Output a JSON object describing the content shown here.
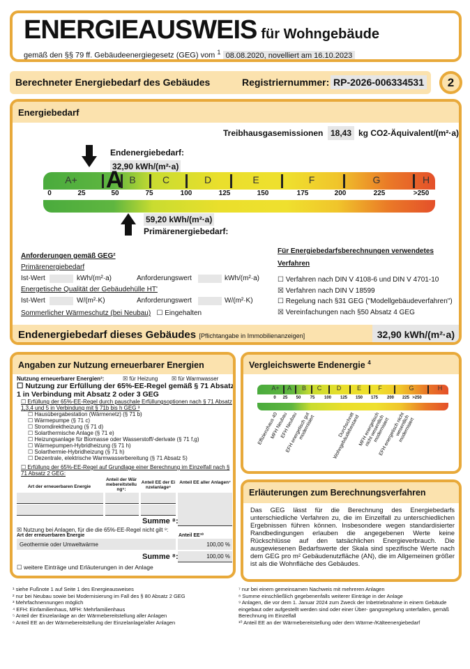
{
  "header": {
    "title": "ENERGIEAUSWEIS",
    "subtitle": "für Wohngebäude",
    "law": "gemäß den §§ 79 ff. Gebäudeenergiegesetz (GEG) vom",
    "law_sup": "1",
    "law_date": "08.08.2020, novelliert am 16.10.2023"
  },
  "band": {
    "title": "Berechneter Energiebedarf des Gebäudes",
    "reg_label": "Registriernummer:",
    "reg_value": "RP-2026-006334531",
    "page": "2"
  },
  "energiebedarf": {
    "title": "Energiebedarf",
    "ghg_label": "Treibhausgasemissionen",
    "ghg_value": "18,43",
    "ghg_unit": "kg CO2-Äquivalent/(m²·a)",
    "end_label": "Endenergiebedarf:",
    "end_value": "32,90 kWh/(m²·a)",
    "prim_value": "59,20 kWh/(m²·a)",
    "prim_label": "Primärenergiebedarf:",
    "classes": [
      "A+",
      "A",
      "B",
      "C",
      "D",
      "E",
      "F",
      "G",
      "H"
    ],
    "active_class": "A",
    "ticks": [
      "0",
      "25",
      "50",
      "75",
      "100",
      "125",
      "150",
      "175",
      "200",
      "225",
      ">250"
    ],
    "end_numeric": 32.9,
    "prim_numeric": 59.2,
    "req": {
      "title": "Anforderungen gemäß GEG²",
      "prim": "Primärenergiebedarf",
      "ist": "Ist-Wert",
      "unit1": "kWh/(m²·a)",
      "anf": "Anforderungswert",
      "hull": "Energetische Qualität der Gebäudehülle HT'",
      "unit2": "W/(m²·K)",
      "summer": "Sommerlicher Wärmeschutz (bei Neubau)",
      "summer_check": "☐ Eingehalten"
    },
    "method": {
      "title": "Für Energiebedarfsberechnungen verwendetes Verfahren",
      "items": [
        "☐ Verfahren nach DIN V 4108-6 und DIN V 4701-10",
        "☒ Verfahren nach DIN V 18599",
        "☐ Regelung nach §31 GEG (\"Modellgebäudeverfahren\")",
        "☒ Vereinfachungen nach §50 Absatz 4 GEG"
      ]
    },
    "final_label": "Endenergiebedarf dieses Gebäudes",
    "final_note": "[Pflichtangabe in Immobilienanzeigen]",
    "final_value": "32,90 kWh/(m²·a)"
  },
  "renewable": {
    "title": "Angaben zur Nutzung erneuerbarer Energien",
    "use_label": "Nutzung erneuerbarer Energien³:",
    "heat": "☒ für Heizung",
    "water": "☒ für Warmwasser",
    "rule65": "☐ Nutzung zur Erfüllung der 65%-EE-Regel gemäß § 71 Absatz 1 in Verbindung mit Absatz 2 oder 3 GEG",
    "pausch": "☐ Erfüllung der 65%-EE-Regel durch pauschale Erfüllungsoptionen nach § 71 Absatz 1,3,4 und 5 in Verbindung mit § 71b bis h GEG ³",
    "options": [
      "☐ Hausübergabestation (Wärmenetz) (§ 71 b)",
      "☐ Wärmepumpe (§ 71 c)",
      "☐ Stromdirektheizung (§ 71 d)",
      "☐ Solarthermische Anlage (§ 71 e)",
      "☐ Heizungsanlage für Biomasse oder Wasserstoff/-derivate (§ 71 f,g)",
      "☐ Wärmepumpen-Hybridheizung (§ 71 h)",
      "☐ Solarthermie-Hybridheizung (§ 71 h)",
      "☐ Dezentrale, elektrische Warmwasserbereitung (§ 71 Absatz 5)"
    ],
    "einzel": "☐ Erfüllung der 65%-EE-Regel auf Grundlage einer Berechnung im Einzelfall nach § 71 Absatz 2 GEG:",
    "cols": [
      "Art der erneuerbaren Energie",
      "Anteil der Wärmebereitstellung⁵:",
      "Anteil EE der Einzelanlage⁶",
      "Anteil EE aller Anlagen⁷"
    ],
    "summe": "Summe ⁸:",
    "notapply": "☒ Nutzung bei Anlagen, für die die 65%-EE-Regel nicht gilt ⁹:",
    "col2a": "Art der erneuerbaren Energie",
    "col2b": "Anteil EE¹⁰",
    "row_name": "Geothermie oder Umweltwärme",
    "row_value": "100,00 %",
    "sum_value": "100,00 %",
    "more": "☐ weitere Einträge und Erläuterungen in der Anlage"
  },
  "compare": {
    "title": "Vergleichswerte Endenergie",
    "sup": "4",
    "labels": [
      "Effizienzhaus 40",
      "MFH Neubau",
      "EFH Neubau",
      "EFH energetisch gut modernisiert",
      "Durchschnitt Wohngebäudebestand",
      "MFH energetisch nicht wesentlich modernisiert",
      "EFH energetisch nicht wesentlich modernisiert"
    ]
  },
  "explain": {
    "title": "Erläuterungen zum Berechnungsverfahren",
    "text": "Das GEG lässt für die Berechnung des Energiebedarfs unterschiedliche Verfahren zu, die im Einzelfall zu unterschiedlichen Ergebnissen führen können. Insbesondere wegen standardisierter Randbedingungen erlauben die angegebenen Werte keine Rückschlüsse auf den tatsächlichen Energieverbrauch. Die ausgewiesenen Bedarfswerte der Skala sind spezifische Werte nach dem GEG pro m² Gebäudenutzfläche (AN), die im Allgemeinen größer ist als die Wohnfläche des Gebäudes."
  },
  "footnotes_left": [
    "¹ siehe Fußnote 1 auf Seite 1 des Energieausweises",
    "² nur bei Neubau sowie bei Modernisierung im Fall des § 80 Absatz 2 GEG",
    "³ Mehrfachnennungen möglich",
    "⁴ EFH: Einfamilienhaus, MFH: Mehrfamilienhaus",
    "⁵ Anteil der Einzelanlage an der Wärmebereitstellung aller Anlagen",
    "⁶ Anteil EE an der Wärmebereitstellung der Einzelanlage/aller Anlagen"
  ],
  "footnotes_right": [
    "⁷ nur bei einem gemeinsamen Nachweis mit mehreren Anlagen",
    "⁸ Summe einschließlich gegebenenfalls weiterer Einträge in der Anlage",
    "⁹ Anlagen, die vor dem 1. Januar 2024 zum Zweck der Inbetriebnahme in einem Gebäude eingebaut oder aufgestellt werden sind oder einer Über- gangsregelung unterfallen, gemäß Berechnung im Einzelfall",
    "¹⁰ Anteil EE an der Wärmebereitstellung oder dem Wärme-/Kälteenergiebedarf"
  ],
  "colors": {
    "border": "#e8a93a",
    "band": "#fbe2ae",
    "field": "#e6e6e6"
  }
}
